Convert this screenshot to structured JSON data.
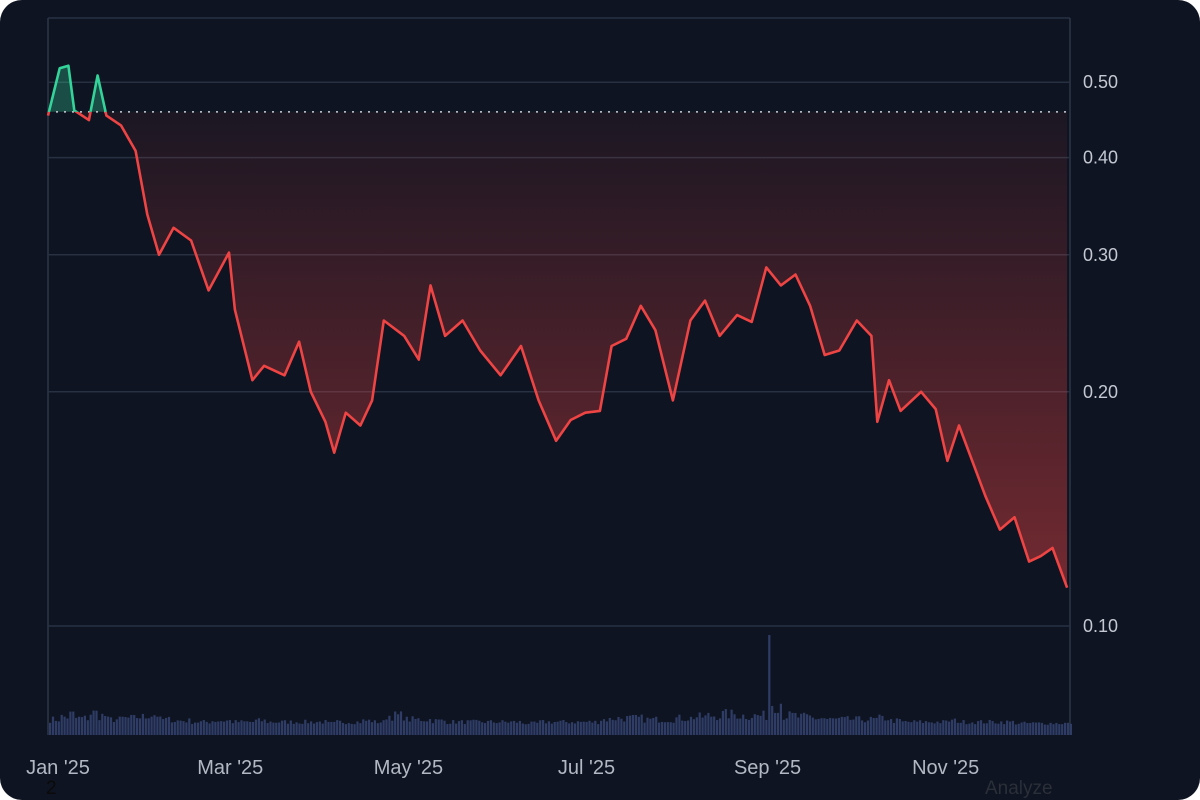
{
  "chart_data": {
    "type": "line",
    "y_scale": "log",
    "ylim": [
      0.095,
      0.58
    ],
    "y_ticks": [
      "0.10",
      "0.20",
      "0.30",
      "0.40",
      "0.50"
    ],
    "x_ticks": [
      "Jan '25",
      "Mar '25",
      "May '25",
      "Jul '25",
      "Sep '25",
      "Nov '25"
    ],
    "x_tick_dates": [
      "2025-01-01",
      "2025-03-01",
      "2025-05-01",
      "2025-07-01",
      "2025-09-01",
      "2025-11-01"
    ],
    "baseline": 0.458,
    "grid": true,
    "colors": {
      "above": "#34d399",
      "below": "#ef4444",
      "volume": "#2f3d66",
      "background": "#0e1421",
      "grid": "#273142"
    },
    "series": [
      {
        "x": [
          "2025-01-01",
          "2025-01-05",
          "2025-01-08",
          "2025-01-10",
          "2025-01-15",
          "2025-01-18",
          "2025-01-21",
          "2025-01-26",
          "2025-01-31",
          "2025-02-04",
          "2025-02-08",
          "2025-02-13",
          "2025-02-19",
          "2025-02-25",
          "2025-03-04",
          "2025-03-06",
          "2025-03-12",
          "2025-03-16",
          "2025-03-23",
          "2025-03-28",
          "2025-04-01",
          "2025-04-06",
          "2025-04-09",
          "2025-04-13",
          "2025-04-18",
          "2025-04-22",
          "2025-04-26",
          "2025-05-03",
          "2025-05-08",
          "2025-05-12",
          "2025-05-17",
          "2025-05-23",
          "2025-05-29",
          "2025-06-05",
          "2025-06-12",
          "2025-06-18",
          "2025-06-24",
          "2025-06-29",
          "2025-07-04",
          "2025-07-09",
          "2025-07-13",
          "2025-07-18",
          "2025-07-23",
          "2025-07-28",
          "2025-08-03",
          "2025-08-09",
          "2025-08-14",
          "2025-08-19",
          "2025-08-25",
          "2025-08-30",
          "2025-09-04",
          "2025-09-09",
          "2025-09-14",
          "2025-09-19",
          "2025-09-24",
          "2025-09-29",
          "2025-10-05",
          "2025-10-10",
          "2025-10-12",
          "2025-10-16",
          "2025-10-20",
          "2025-10-27",
          "2025-11-01",
          "2025-11-05",
          "2025-11-09",
          "2025-11-13",
          "2025-11-18",
          "2025-11-23",
          "2025-11-28",
          "2025-12-03",
          "2025-12-07",
          "2025-12-11",
          "2025-12-16"
        ],
        "y": [
          0.453,
          0.521,
          0.525,
          0.46,
          0.447,
          0.51,
          0.453,
          0.44,
          0.408,
          0.338,
          0.3,
          0.325,
          0.313,
          0.27,
          0.302,
          0.255,
          0.207,
          0.216,
          0.21,
          0.232,
          0.2,
          0.183,
          0.167,
          0.188,
          0.181,
          0.195,
          0.247,
          0.236,
          0.22,
          0.274,
          0.236,
          0.247,
          0.226,
          0.21,
          0.229,
          0.195,
          0.173,
          0.184,
          0.188,
          0.189,
          0.229,
          0.234,
          0.258,
          0.24,
          0.195,
          0.247,
          0.262,
          0.236,
          0.251,
          0.246,
          0.289,
          0.274,
          0.283,
          0.258,
          0.223,
          0.226,
          0.247,
          0.236,
          0.183,
          0.207,
          0.189,
          0.2,
          0.19,
          0.163,
          0.181,
          0.165,
          0.147,
          0.133,
          0.138,
          0.121,
          0.123,
          0.126,
          0.112
        ],
        "volume_relative": [
          0.3,
          0.4,
          0.5,
          0.35,
          0.55,
          0.45,
          0.3,
          0.35,
          0.4,
          0.5,
          0.3,
          0.25,
          0.2,
          0.25,
          0.2,
          0.2,
          0.25,
          0.2,
          0.2,
          0.2,
          0.2,
          0.15,
          0.2,
          0.2,
          0.25,
          0.2,
          0.45,
          0.3,
          0.3,
          0.25,
          0.2,
          0.2,
          0.2,
          0.2,
          0.15,
          0.2,
          0.2,
          0.2,
          0.2,
          0.3,
          0.35,
          0.35,
          0.3,
          0.3,
          0.35,
          0.4,
          0.45,
          0.5,
          0.45,
          0.45,
          1.0,
          0.45,
          0.4,
          0.35,
          0.3,
          0.3,
          0.3,
          0.3,
          0.35,
          0.25,
          0.2,
          0.2,
          0.2,
          0.25,
          0.2,
          0.2,
          0.2,
          0.2,
          0.15,
          0.15,
          0.15,
          0.15,
          0.1
        ]
      }
    ]
  },
  "footer": {
    "left_text": "2",
    "right_text": "Analyze"
  }
}
